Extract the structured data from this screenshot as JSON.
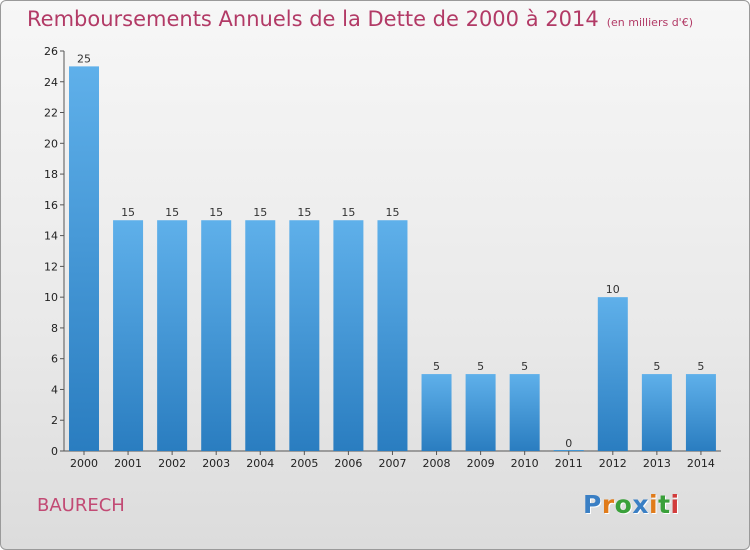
{
  "title": "Remboursements Annuels de la Dette de 2000 à 2014",
  "unit": "(en milliers d'€)",
  "footer_name": "BAURECH",
  "logo": {
    "text": "Proxiti",
    "colors": [
      "#3a7fc4",
      "#e07b1a",
      "#3aa03a",
      "#3a7fc4",
      "#e07b1a",
      "#3aa03a",
      "#d23c3c"
    ]
  },
  "colors": {
    "title": "#b23a66",
    "bar_top": "#5fb0ea",
    "bar_bottom": "#2a7dc0"
  },
  "chart_data": {
    "type": "bar",
    "categories": [
      "2000",
      "2001",
      "2002",
      "2003",
      "2004",
      "2005",
      "2006",
      "2007",
      "2008",
      "2009",
      "2010",
      "2011",
      "2012",
      "2013",
      "2014"
    ],
    "values": [
      25,
      15,
      15,
      15,
      15,
      15,
      15,
      15,
      5,
      5,
      5,
      0,
      10,
      5,
      5
    ],
    "ylim": [
      0,
      26
    ],
    "yticks": [
      0,
      2,
      4,
      6,
      8,
      10,
      12,
      14,
      16,
      18,
      20,
      22,
      24,
      26
    ],
    "grid": false,
    "data_labels": true
  }
}
